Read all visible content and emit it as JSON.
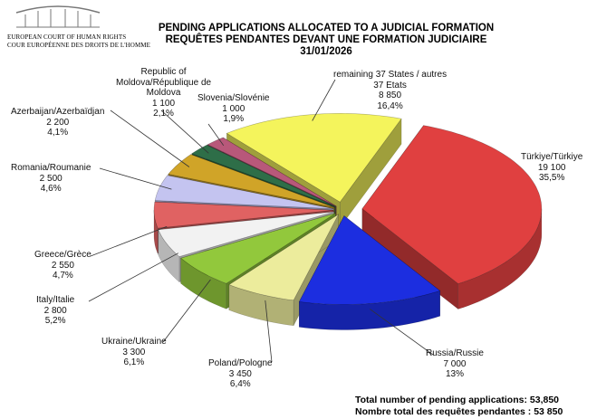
{
  "header": {
    "court_en": "EUROPEAN COURT OF HUMAN RIGHTS",
    "court_fr": "COUR EUROPÉENNE DES DROITS DE L'HOMME"
  },
  "chart_data": {
    "type": "pie",
    "title": "PENDING APPLICATIONS ALLOCATED TO A JUDICIAL FORMATION",
    "subtitle": "REQUÊTES PENDANTES DEVANT UNE FORMATION JUDICIAIRE",
    "date": "31/01/2026",
    "categories": [
      "Türkiye/Türkiye",
      "Russia/Russie",
      "Poland/Pologne",
      "Ukraine/Ukraine",
      "Italy/Italie",
      "Greece/Grèce",
      "Romania/Roumanie",
      "Azerbaijan/Azerbaïdjan",
      "Republic of\nMoldova/République de\nMoldova",
      "Slovenia/Slovénie",
      "remaining 37 States / autres\n37 Etats"
    ],
    "values": [
      19100,
      7000,
      3450,
      3300,
      2800,
      2550,
      2500,
      2200,
      1100,
      1000,
      8850
    ],
    "value_labels": [
      "19 100",
      "7 000",
      "3 450",
      "3 300",
      "2 800",
      "2 550",
      "2 500",
      "2 200",
      "1 100",
      "1 000",
      "8 850"
    ],
    "percent_labels": [
      "35,5%",
      "13%",
      "6,4%",
      "6,1%",
      "5,2%",
      "4,7%",
      "4,6%",
      "4,1%",
      "2,1%",
      "1,9%",
      "16,4%"
    ],
    "colors": [
      "#e04040",
      "#1c2ee0",
      "#ecec9c",
      "#92c83c",
      "#f2f2f2",
      "#e06262",
      "#c4c4f0",
      "#d0a428",
      "#2e6e48",
      "#b8587a",
      "#f4f45c"
    ],
    "footer": [
      "Total number of pending applications:  53,850",
      "Nombre total des requêtes pendantes : 53 850"
    ]
  }
}
